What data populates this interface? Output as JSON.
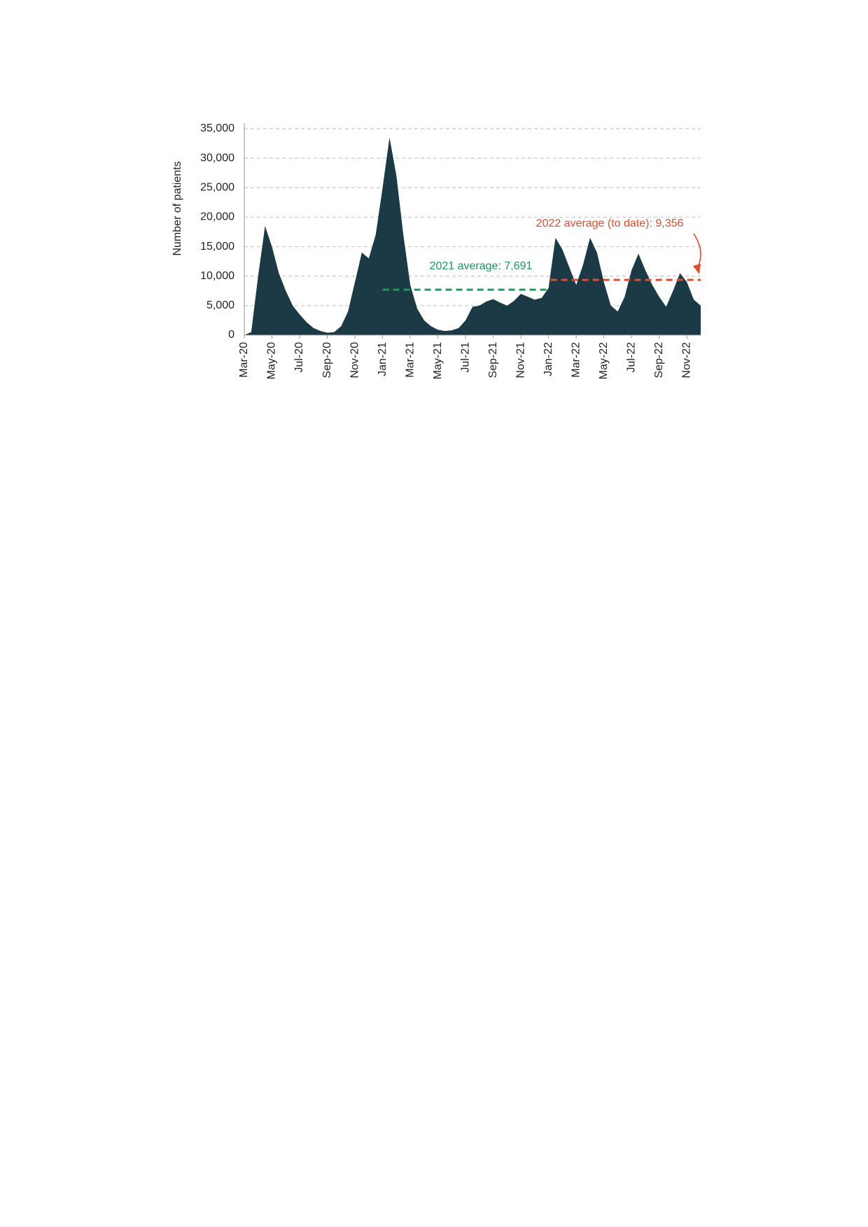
{
  "chart_data": {
    "type": "area",
    "y_label": "Number of patients",
    "categories": [
      "Mar-20",
      null,
      null,
      null,
      "May-20",
      null,
      null,
      null,
      "Jul-20",
      null,
      null,
      null,
      "Sep-20",
      null,
      null,
      null,
      "Nov-20",
      null,
      null,
      null,
      "Jan-21",
      null,
      null,
      null,
      "Mar-21",
      null,
      null,
      null,
      "May-21",
      null,
      null,
      null,
      "Jul-21",
      null,
      null,
      null,
      "Sep-21",
      null,
      null,
      null,
      "Nov-21",
      null,
      null,
      null,
      "Jan-22",
      null,
      null,
      null,
      "Mar-22",
      null,
      null,
      null,
      "May-22",
      null,
      null,
      null,
      "Jul-22",
      null,
      null,
      null,
      "Sep-22",
      null,
      null,
      null,
      "Nov-22",
      null,
      null
    ],
    "values": [
      0,
      500,
      10000,
      18500,
      15000,
      10500,
      7500,
      5000,
      3500,
      2200,
      1200,
      700,
      400,
      500,
      1500,
      4000,
      9000,
      14000,
      13000,
      17000,
      25000,
      33500,
      27000,
      17000,
      8500,
      4500,
      2500,
      1500,
      900,
      700,
      800,
      1200,
      2500,
      4800,
      5000,
      5700,
      6100,
      5500,
      5000,
      5800,
      7000,
      6500,
      6000,
      6300,
      8000,
      16500,
      14500,
      11500,
      8500,
      12000,
      16500,
      14000,
      9000,
      5000,
      4000,
      6500,
      11000,
      13800,
      11000,
      8500,
      6500,
      4800,
      7500,
      10500,
      9000,
      6000,
      5000
    ],
    "color": "#1b3a45",
    "ylim": [
      0,
      35000
    ],
    "yticks": [
      0,
      {
        "value": 5000,
        "label": "5,000"
      },
      {
        "value": 10000,
        "label": "10,000"
      },
      {
        "value": 15000,
        "label": "15,000"
      },
      {
        "value": 20000,
        "label": "20,000"
      },
      {
        "value": 25000,
        "label": "25,000"
      },
      {
        "value": 30000,
        "label": "30,000"
      },
      {
        "value": 35000,
        "label": "35,000"
      }
    ],
    "grid": true,
    "annotations": [
      {
        "label": "2021 average: 7,691",
        "value": 7691,
        "color": "#1e9a5a"
      },
      {
        "label": "2022 average (to date): 9,356",
        "value": 9356,
        "color": "#e8492a"
      }
    ]
  }
}
